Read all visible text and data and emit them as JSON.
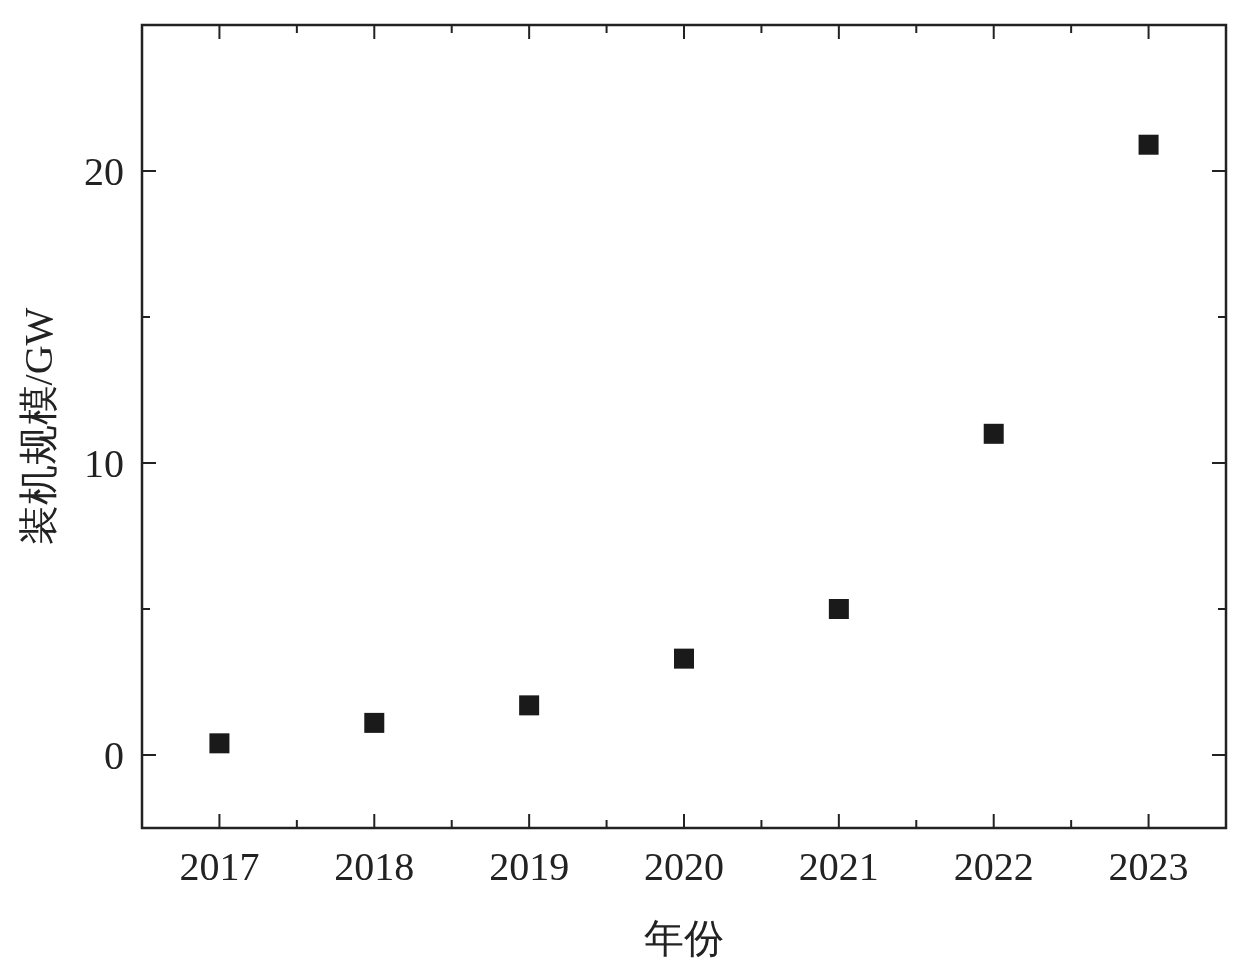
{
  "chart_data": {
    "type": "scatter",
    "xlabel": "年份",
    "ylabel": "装机规模/GW",
    "x": [
      2017,
      2018,
      2019,
      2020,
      2021,
      2022,
      2023
    ],
    "values": [
      0.4,
      1.1,
      1.7,
      3.3,
      5.0,
      11.0,
      20.9
    ],
    "color": "#1a1a1a",
    "marker": "square",
    "xlim": [
      2016.5,
      2023.5
    ],
    "xticks": [
      {
        "value": 2016.5,
        "label": null
      },
      2017,
      {
        "value": 2017.5,
        "label": null
      },
      2018,
      {
        "value": 2018.5,
        "label": null
      },
      2019,
      {
        "value": 2019.5,
        "label": null
      },
      2020,
      {
        "value": 2020.5,
        "label": null
      },
      2021,
      {
        "value": 2021.5,
        "label": null
      },
      2022,
      {
        "value": 2022.5,
        "label": null
      },
      2023,
      {
        "value": 2023.5,
        "label": null
      }
    ],
    "ylim": [
      -2.5,
      25
    ],
    "yticks": [
      0,
      {
        "value": 5,
        "label": null
      },
      10,
      {
        "value": 15,
        "label": null
      },
      20
    ]
  }
}
